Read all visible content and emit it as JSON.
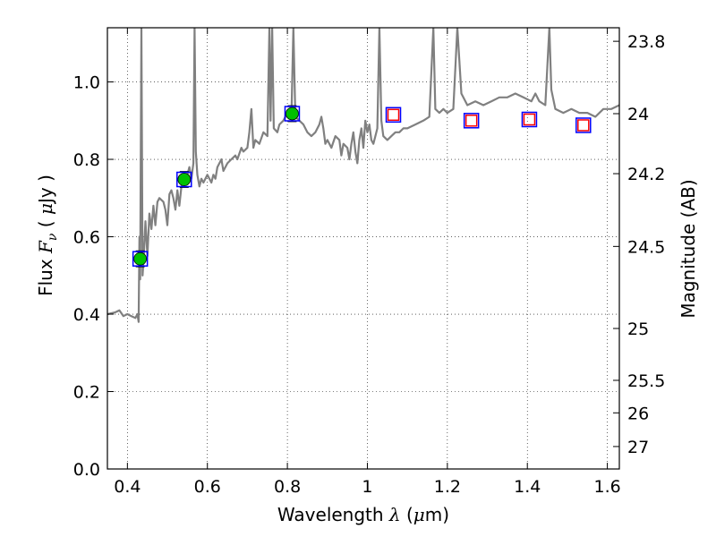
{
  "chart_data": {
    "type": "line",
    "xlabel": {
      "prefix": "Wavelength  ",
      "symbol": "λ",
      "unit_open": " (",
      "unit_mu": "μ",
      "unit_rest": "m)"
    },
    "ylabel": {
      "prefix": "Flux  ",
      "symbol": "F",
      "subscript": "ν",
      "unit_open": "  ( ",
      "unit_mu": "μ",
      "unit_rest": "Jy )"
    },
    "y2label": "Magnitude (AB)",
    "xlim": [
      0.35,
      1.63
    ],
    "ylim": [
      0.0,
      1.14
    ],
    "grid": true,
    "x_ticks": [
      {
        "value": 0.4,
        "label": "0.4"
      },
      {
        "value": 0.6,
        "label": "0.6"
      },
      {
        "value": 0.8,
        "label": "0.8"
      },
      {
        "value": 1.0,
        "label": "1"
      },
      {
        "value": 1.2,
        "label": "1.2"
      },
      {
        "value": 1.4,
        "label": "1.4"
      },
      {
        "value": 1.6,
        "label": "1.6"
      }
    ],
    "y_ticks": [
      {
        "value": 0.0,
        "label": "0.0"
      },
      {
        "value": 0.2,
        "label": "0.2"
      },
      {
        "value": 0.4,
        "label": "0.4"
      },
      {
        "value": 0.6,
        "label": "0.6"
      },
      {
        "value": 0.8,
        "label": "0.8"
      },
      {
        "value": 1.0,
        "label": "1.0"
      }
    ],
    "y2_ticks": [
      {
        "label": "23.8",
        "flux": 1.105
      },
      {
        "label": "24",
        "flux": 0.918
      },
      {
        "label": "24.2",
        "flux": 0.763
      },
      {
        "label": "24.5",
        "flux": 0.575
      },
      {
        "label": "25",
        "flux": 0.363
      },
      {
        "label": "25.5",
        "flux": 0.229
      },
      {
        "label": "26",
        "flux": 0.145
      },
      {
        "label": "27",
        "flux": 0.058
      }
    ],
    "series": [
      {
        "type": "line",
        "color": "#808080",
        "points": [
          [
            0.35,
            0.4
          ],
          [
            0.37,
            0.405
          ],
          [
            0.38,
            0.41
          ],
          [
            0.39,
            0.395
          ],
          [
            0.4,
            0.4
          ],
          [
            0.41,
            0.395
          ],
          [
            0.42,
            0.39
          ],
          [
            0.425,
            0.4
          ],
          [
            0.428,
            0.38
          ],
          [
            0.43,
            0.6
          ],
          [
            0.432,
            0.49
          ],
          [
            0.435,
            1.14
          ],
          [
            0.438,
            0.5
          ],
          [
            0.441,
            0.55
          ],
          [
            0.445,
            0.64
          ],
          [
            0.45,
            0.55
          ],
          [
            0.455,
            0.66
          ],
          [
            0.46,
            0.62
          ],
          [
            0.465,
            0.68
          ],
          [
            0.47,
            0.63
          ],
          [
            0.475,
            0.69
          ],
          [
            0.48,
            0.7
          ],
          [
            0.49,
            0.69
          ],
          [
            0.495,
            0.67
          ],
          [
            0.5,
            0.63
          ],
          [
            0.505,
            0.71
          ],
          [
            0.51,
            0.72
          ],
          [
            0.515,
            0.7
          ],
          [
            0.52,
            0.67
          ],
          [
            0.525,
            0.72
          ],
          [
            0.53,
            0.68
          ],
          [
            0.535,
            0.73
          ],
          [
            0.545,
            0.75
          ],
          [
            0.55,
            0.76
          ],
          [
            0.555,
            0.78
          ],
          [
            0.56,
            0.75
          ],
          [
            0.565,
            0.79
          ],
          [
            0.568,
            1.14
          ],
          [
            0.571,
            0.82
          ],
          [
            0.575,
            0.76
          ],
          [
            0.58,
            0.73
          ],
          [
            0.585,
            0.75
          ],
          [
            0.59,
            0.74
          ],
          [
            0.6,
            0.76
          ],
          [
            0.61,
            0.74
          ],
          [
            0.615,
            0.76
          ],
          [
            0.62,
            0.75
          ],
          [
            0.625,
            0.78
          ],
          [
            0.635,
            0.8
          ],
          [
            0.64,
            0.77
          ],
          [
            0.65,
            0.79
          ],
          [
            0.66,
            0.8
          ],
          [
            0.67,
            0.81
          ],
          [
            0.675,
            0.8
          ],
          [
            0.685,
            0.83
          ],
          [
            0.69,
            0.82
          ],
          [
            0.7,
            0.83
          ],
          [
            0.705,
            0.87
          ],
          [
            0.71,
            0.93
          ],
          [
            0.715,
            0.83
          ],
          [
            0.72,
            0.85
          ],
          [
            0.73,
            0.84
          ],
          [
            0.74,
            0.87
          ],
          [
            0.75,
            0.86
          ],
          [
            0.755,
            1.14
          ],
          [
            0.758,
            0.9
          ],
          [
            0.762,
            1.14
          ],
          [
            0.766,
            0.88
          ],
          [
            0.775,
            0.87
          ],
          [
            0.78,
            0.89
          ],
          [
            0.79,
            0.9
          ],
          [
            0.8,
            0.92
          ],
          [
            0.805,
            0.93
          ],
          [
            0.81,
            0.91
          ],
          [
            0.815,
            1.14
          ],
          [
            0.82,
            0.91
          ],
          [
            0.83,
            0.9
          ],
          [
            0.84,
            0.89
          ],
          [
            0.85,
            0.87
          ],
          [
            0.86,
            0.86
          ],
          [
            0.87,
            0.87
          ],
          [
            0.88,
            0.89
          ],
          [
            0.885,
            0.91
          ],
          [
            0.89,
            0.88
          ],
          [
            0.895,
            0.84
          ],
          [
            0.9,
            0.85
          ],
          [
            0.91,
            0.83
          ],
          [
            0.92,
            0.86
          ],
          [
            0.93,
            0.85
          ],
          [
            0.935,
            0.81
          ],
          [
            0.94,
            0.84
          ],
          [
            0.95,
            0.83
          ],
          [
            0.955,
            0.8
          ],
          [
            0.96,
            0.84
          ],
          [
            0.965,
            0.87
          ],
          [
            0.97,
            0.82
          ],
          [
            0.975,
            0.79
          ],
          [
            0.98,
            0.85
          ],
          [
            0.985,
            0.88
          ],
          [
            0.99,
            0.83
          ],
          [
            0.995,
            0.9
          ],
          [
            1.0,
            0.87
          ],
          [
            1.005,
            0.89
          ],
          [
            1.01,
            0.85
          ],
          [
            1.015,
            0.84
          ],
          [
            1.02,
            0.86
          ],
          [
            1.025,
            0.88
          ],
          [
            1.03,
            1.14
          ],
          [
            1.035,
            0.9
          ],
          [
            1.04,
            0.86
          ],
          [
            1.05,
            0.85
          ],
          [
            1.06,
            0.86
          ],
          [
            1.07,
            0.87
          ],
          [
            1.08,
            0.87
          ],
          [
            1.09,
            0.88
          ],
          [
            1.1,
            0.88
          ],
          [
            1.12,
            0.89
          ],
          [
            1.14,
            0.9
          ],
          [
            1.155,
            0.91
          ],
          [
            1.165,
            1.14
          ],
          [
            1.17,
            0.93
          ],
          [
            1.18,
            0.92
          ],
          [
            1.19,
            0.93
          ],
          [
            1.2,
            0.92
          ],
          [
            1.215,
            0.93
          ],
          [
            1.225,
            1.14
          ],
          [
            1.235,
            0.97
          ],
          [
            1.25,
            0.94
          ],
          [
            1.27,
            0.95
          ],
          [
            1.29,
            0.94
          ],
          [
            1.31,
            0.95
          ],
          [
            1.33,
            0.96
          ],
          [
            1.35,
            0.96
          ],
          [
            1.37,
            0.97
          ],
          [
            1.39,
            0.96
          ],
          [
            1.41,
            0.95
          ],
          [
            1.42,
            0.97
          ],
          [
            1.43,
            0.95
          ],
          [
            1.445,
            0.94
          ],
          [
            1.455,
            1.14
          ],
          [
            1.46,
            0.98
          ],
          [
            1.47,
            0.93
          ],
          [
            1.49,
            0.92
          ],
          [
            1.51,
            0.93
          ],
          [
            1.53,
            0.92
          ],
          [
            1.55,
            0.92
          ],
          [
            1.57,
            0.91
          ],
          [
            1.59,
            0.93
          ],
          [
            1.61,
            0.93
          ],
          [
            1.63,
            0.94
          ]
        ]
      },
      {
        "type": "scatter",
        "color": "#00c000",
        "points": [
          [
            0.432,
            0.543
          ],
          [
            0.542,
            0.748
          ],
          [
            0.812,
            0.918
          ]
        ],
        "yerr": [
          0.02,
          0.02,
          0.02
        ]
      },
      {
        "type": "scatter",
        "color": "#0000ff",
        "marker": "square",
        "points": [
          [
            0.432,
            0.543
          ],
          [
            0.542,
            0.748
          ],
          [
            0.812,
            0.918
          ],
          [
            1.065,
            0.915
          ],
          [
            1.26,
            0.9
          ],
          [
            1.405,
            0.903
          ],
          [
            1.54,
            0.888
          ]
        ]
      },
      {
        "type": "scatter",
        "color": "#ff0000",
        "marker": "square",
        "points": [
          [
            1.065,
            0.915
          ],
          [
            1.26,
            0.9
          ],
          [
            1.405,
            0.903
          ],
          [
            1.54,
            0.888
          ]
        ]
      }
    ]
  }
}
